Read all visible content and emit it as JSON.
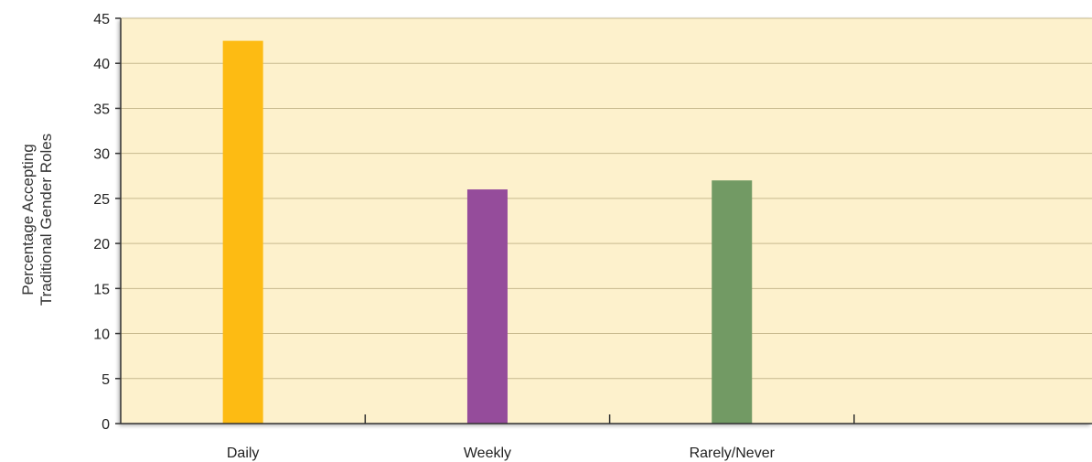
{
  "chart_data": {
    "type": "bar",
    "title": "",
    "xlabel": "",
    "ylabel": [
      "Percentage Accepting",
      "Traditional Gender Roles"
    ],
    "categories": [
      "Daily",
      "Weekly",
      "Rarely/Never"
    ],
    "values": [
      42.5,
      26,
      27
    ],
    "ylim": [
      0,
      45
    ],
    "yticks": [
      0,
      5,
      10,
      15,
      20,
      25,
      30,
      35,
      40,
      45
    ],
    "grid": true,
    "bar_colors": [
      "#FDBB13",
      "#954C9B",
      "#729A64"
    ],
    "plot_background": "#FDF1CC",
    "gridline_color": "#C7B98E",
    "axis_color": "#333333"
  }
}
